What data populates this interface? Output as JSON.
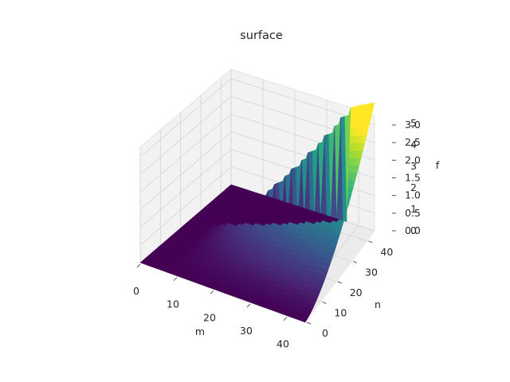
{
  "chart_data": {
    "type": "surface3d",
    "title": "surface",
    "xlabel": "m",
    "ylabel": "n",
    "zlabel": "f",
    "colormap": "viridis",
    "grid": true,
    "x_range": [
      0,
      45
    ],
    "y_range": [
      0,
      45
    ],
    "z_range": [
      0,
      3.0
    ],
    "x_ticks": [
      "0",
      "10",
      "20",
      "30",
      "40"
    ],
    "y_ticks": [
      "0",
      "10",
      "20",
      "30",
      "40"
    ],
    "z_ticks": [
      "0.0",
      "0.5",
      "1.0",
      "1.5",
      "2.0",
      "2.5",
      "3.0"
    ],
    "z_ticks_overlay": [
      "0",
      "1",
      "2",
      "3",
      "4",
      "5"
    ],
    "surface_ridge": [
      {
        "m": 6,
        "n": 25,
        "f": 0.0
      },
      {
        "m": 8,
        "n": 25,
        "f": 0.3
      },
      {
        "m": 13,
        "n": 28,
        "f": 0.9
      },
      {
        "m": 20,
        "n": 33,
        "f": 1.5
      },
      {
        "m": 26,
        "n": 37,
        "f": 2.0
      },
      {
        "m": 33,
        "n": 42,
        "f": 2.8
      },
      {
        "m": 35,
        "n": 44,
        "f": 3.0
      }
    ]
  }
}
